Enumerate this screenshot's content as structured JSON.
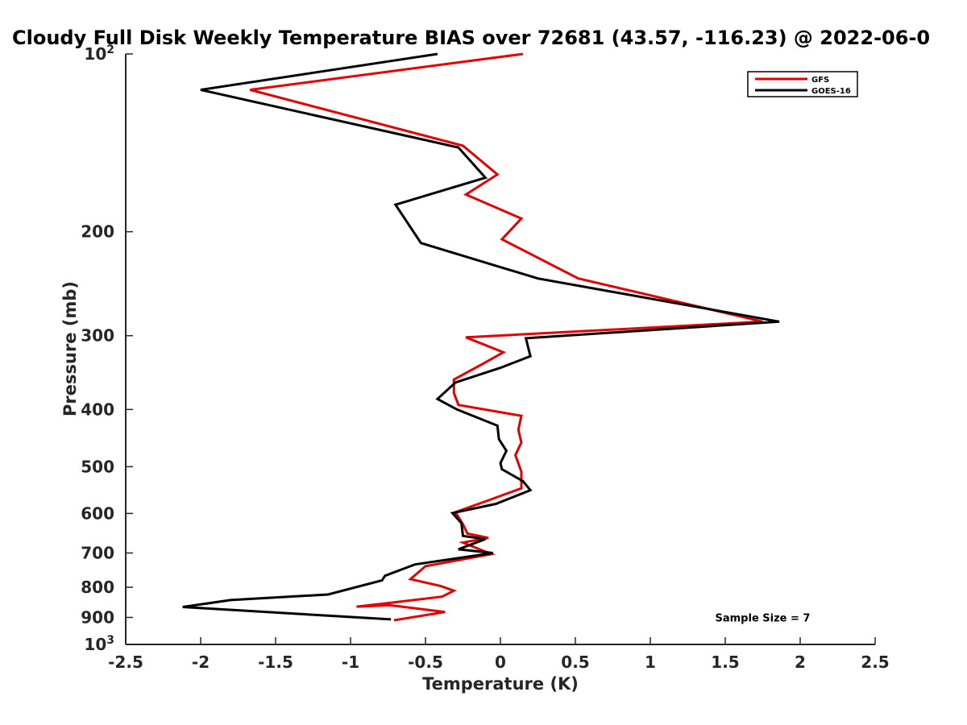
{
  "chart_data": {
    "type": "line",
    "title": "Cloudy Full Disk Weekly Temperature BIAS over 72681 (43.57, -116.23) @ 2022-06-0",
    "xlabel": "Temperature (K)",
    "ylabel": "Pressure (mb)",
    "xlim": [
      -2.5,
      2.5
    ],
    "ylim": [
      100,
      1000
    ],
    "y_scale": "log",
    "y_reversed": true,
    "grid": false,
    "legend_position": "top-right",
    "x_ticks": [
      {
        "value": -2.5,
        "label": "-2.5"
      },
      {
        "value": -2,
        "label": "-2"
      },
      {
        "value": -1.5,
        "label": "-1.5"
      },
      {
        "value": -1,
        "label": "-1"
      },
      {
        "value": -0.5,
        "label": "-0.5"
      },
      {
        "value": 0,
        "label": "0"
      },
      {
        "value": 0.5,
        "label": "0.5"
      },
      {
        "value": 1,
        "label": "1"
      },
      {
        "value": 1.5,
        "label": "1.5"
      },
      {
        "value": 2,
        "label": "2"
      },
      {
        "value": 2.5,
        "label": "2.5"
      }
    ],
    "y_ticks": [
      {
        "value": 100,
        "label": "10",
        "sup": "2"
      },
      {
        "value": 200,
        "label": "200",
        "sup": ""
      },
      {
        "value": 300,
        "label": "300",
        "sup": ""
      },
      {
        "value": 400,
        "label": "400",
        "sup": ""
      },
      {
        "value": 500,
        "label": "500",
        "sup": ""
      },
      {
        "value": 600,
        "label": "600",
        "sup": ""
      },
      {
        "value": 700,
        "label": "700",
        "sup": ""
      },
      {
        "value": 800,
        "label": "800",
        "sup": ""
      },
      {
        "value": 900,
        "label": "900",
        "sup": ""
      },
      {
        "value": 1000,
        "label": "10",
        "sup": "3"
      }
    ],
    "series": [
      {
        "name": "GFS",
        "color": "#e00000",
        "points": [
          [
            0.15,
            100
          ],
          [
            -1.67,
            115
          ],
          [
            -0.25,
            143
          ],
          [
            -0.02,
            160
          ],
          [
            -0.23,
            173
          ],
          [
            0.14,
            190
          ],
          [
            0.01,
            206
          ],
          [
            0.52,
            240
          ],
          [
            1.75,
            284
          ],
          [
            -0.23,
            302
          ],
          [
            0.02,
            320
          ],
          [
            -0.11,
            334
          ],
          [
            -0.31,
            356
          ],
          [
            -0.31,
            375
          ],
          [
            -0.28,
            393
          ],
          [
            0.14,
            410
          ],
          [
            0.12,
            433
          ],
          [
            0.14,
            455
          ],
          [
            0.1,
            478
          ],
          [
            0.14,
            510
          ],
          [
            0.14,
            544
          ],
          [
            -0.08,
            570
          ],
          [
            -0.3,
            597
          ],
          [
            -0.25,
            626
          ],
          [
            -0.22,
            649
          ],
          [
            -0.08,
            660
          ],
          [
            -0.25,
            672
          ],
          [
            -0.06,
            703
          ],
          [
            -0.5,
            737
          ],
          [
            -0.6,
            775
          ],
          [
            -0.4,
            796
          ],
          [
            -0.31,
            811
          ],
          [
            -0.39,
            830
          ],
          [
            -0.8,
            854
          ],
          [
            -0.96,
            863
          ],
          [
            -0.74,
            858
          ],
          [
            -0.37,
            881
          ],
          [
            -0.71,
            910
          ]
        ]
      },
      {
        "name": "GOES-16",
        "color": "#000000",
        "points": [
          [
            -0.42,
            100
          ],
          [
            -2.0,
            115
          ],
          [
            -0.28,
            144
          ],
          [
            -0.1,
            162
          ],
          [
            -0.7,
            180
          ],
          [
            -0.53,
            209
          ],
          [
            0.25,
            240
          ],
          [
            1.86,
            284
          ],
          [
            0.17,
            303
          ],
          [
            0.2,
            325
          ],
          [
            0.0,
            340
          ],
          [
            -0.3,
            360
          ],
          [
            -0.42,
            384
          ],
          [
            -0.29,
            400
          ],
          [
            -0.02,
            426
          ],
          [
            -0.01,
            449
          ],
          [
            0.04,
            470
          ],
          [
            0.0,
            493
          ],
          [
            0.01,
            505
          ],
          [
            0.15,
            529
          ],
          [
            0.2,
            548
          ],
          [
            -0.03,
            578
          ],
          [
            -0.32,
            599
          ],
          [
            -0.26,
            623
          ],
          [
            -0.25,
            655
          ],
          [
            -0.1,
            663
          ],
          [
            -0.28,
            690
          ],
          [
            -0.05,
            700
          ],
          [
            -0.57,
            732
          ],
          [
            -0.77,
            765
          ],
          [
            -0.79,
            779
          ],
          [
            -1.15,
            823
          ],
          [
            -1.8,
            841
          ],
          [
            -2.12,
            864
          ],
          [
            -0.73,
            907
          ]
        ]
      }
    ],
    "annotations": [
      {
        "text": "Sample Size = 7",
        "x": 1.75,
        "y": 900
      }
    ]
  }
}
